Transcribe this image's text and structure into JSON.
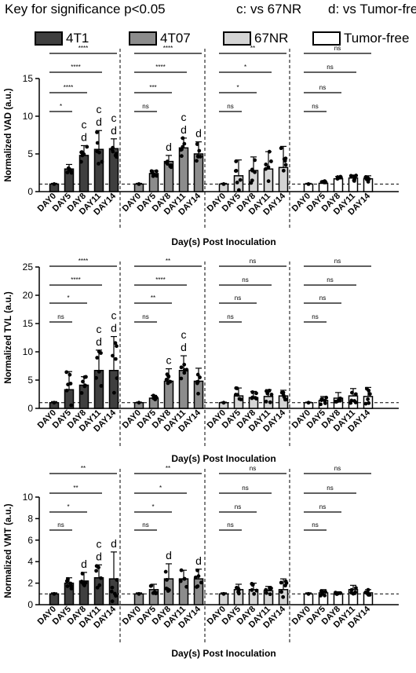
{
  "legend": {
    "titles": [
      "Key for significance p<0.05",
      "c: vs 67NR",
      "d: vs Tumor-free"
    ],
    "items": [
      {
        "label": "4T1",
        "color": "#3f3f3f"
      },
      {
        "label": "4T07",
        "color": "#8c8c8c"
      },
      {
        "label": "67NR",
        "color": "#d4d4d4"
      },
      {
        "label": "Tumor-free",
        "color": "#ffffff"
      }
    ]
  },
  "chart_data": [
    {
      "type": "bar",
      "ylabel": "Normalized VAD (a.u.)",
      "xlabel": "Day(s) Post Inoculation",
      "ylim": [
        0,
        15
      ],
      "yticks": [
        0,
        5,
        10,
        15
      ],
      "categories": [
        "DAY0",
        "DAY5",
        "DAY8",
        "DAY11",
        "DAY14"
      ],
      "reference_line": 1,
      "series": [
        {
          "name": "4T1",
          "values": [
            1.0,
            3.0,
            4.8,
            5.6,
            5.7
          ],
          "errors": [
            0.1,
            0.6,
            1.3,
            2.5,
            1.3
          ],
          "letters": [
            "",
            "",
            "c d",
            "c d",
            "c d"
          ],
          "brackets": [
            {
              "to": "DAY5",
              "label": "*"
            },
            {
              "to": "DAY8",
              "label": "****"
            },
            {
              "to": "DAY11",
              "label": "****"
            },
            {
              "to": "DAY14",
              "label": "****"
            }
          ]
        },
        {
          "name": "4T07",
          "values": [
            1.0,
            2.4,
            4.0,
            5.8,
            5.0
          ],
          "errors": [
            0.1,
            0.4,
            0.8,
            1.3,
            1.6
          ],
          "letters": [
            "",
            "",
            "d",
            "c d",
            "d"
          ],
          "brackets": [
            {
              "to": "DAY5",
              "label": "ns"
            },
            {
              "to": "DAY8",
              "label": "***"
            },
            {
              "to": "DAY11",
              "label": "****"
            },
            {
              "to": "DAY14",
              "label": "****"
            }
          ]
        },
        {
          "name": "67NR",
          "values": [
            1.0,
            2.1,
            2.8,
            3.0,
            3.2
          ],
          "errors": [
            0.1,
            2.1,
            1.8,
            2.3,
            2.8
          ],
          "letters": [
            "",
            "",
            "",
            "",
            ""
          ],
          "brackets": [
            {
              "to": "DAY5",
              "label": "ns"
            },
            {
              "to": "DAY8",
              "label": "*"
            },
            {
              "to": "DAY11",
              "label": "*"
            },
            {
              "to": "DAY14",
              "label": "**"
            }
          ]
        },
        {
          "name": "Tumor-free",
          "values": [
            1.0,
            1.1,
            1.7,
            1.8,
            1.7
          ],
          "errors": [
            0.1,
            0.3,
            0.3,
            0.4,
            0.4
          ],
          "letters": [
            "",
            "",
            "",
            "",
            ""
          ],
          "brackets": [
            {
              "to": "DAY5",
              "label": "ns"
            },
            {
              "to": "DAY8",
              "label": "ns"
            },
            {
              "to": "DAY11",
              "label": "ns"
            },
            {
              "to": "DAY14",
              "label": "ns"
            }
          ]
        }
      ]
    },
    {
      "type": "bar",
      "ylabel": "Normalized TVL (a.u.)",
      "xlabel": "Day(s) Post Inoculation",
      "ylim": [
        0,
        25
      ],
      "yticks": [
        0,
        5,
        10,
        15,
        20,
        25
      ],
      "categories": [
        "DAY0",
        "DAY5",
        "DAY8",
        "DAY11",
        "DAY14"
      ],
      "reference_line": 1,
      "series": [
        {
          "name": "4T1",
          "values": [
            1.0,
            3.3,
            4.1,
            6.7,
            6.7
          ],
          "errors": [
            0.2,
            3.2,
            1.5,
            3.6,
            6.0
          ],
          "letters": [
            "",
            "",
            "",
            "c d",
            "c d"
          ],
          "brackets": [
            {
              "to": "DAY5",
              "label": "ns"
            },
            {
              "to": "DAY8",
              "label": "*"
            },
            {
              "to": "DAY11",
              "label": "****"
            },
            {
              "to": "DAY14",
              "label": "****"
            }
          ]
        },
        {
          "name": "4T07",
          "values": [
            1.0,
            1.8,
            4.8,
            6.7,
            4.8
          ],
          "errors": [
            0.1,
            0.5,
            2.2,
            2.6,
            2.3
          ],
          "letters": [
            "",
            "",
            "c",
            "c d",
            ""
          ],
          "brackets": [
            {
              "to": "DAY5",
              "label": "ns"
            },
            {
              "to": "DAY8",
              "label": "**"
            },
            {
              "to": "DAY11",
              "label": "****"
            },
            {
              "to": "DAY14",
              "label": "**"
            }
          ]
        },
        {
          "name": "67NR",
          "values": [
            1.0,
            2.2,
            1.9,
            2.1,
            2.2
          ],
          "errors": [
            0.1,
            1.4,
            1.1,
            1.2,
            1.0
          ],
          "letters": [
            "",
            "",
            "",
            "",
            ""
          ],
          "brackets": [
            {
              "to": "DAY5",
              "label": "ns"
            },
            {
              "to": "DAY8",
              "label": "ns"
            },
            {
              "to": "DAY11",
              "label": "ns"
            },
            {
              "to": "DAY14",
              "label": "ns"
            }
          ]
        },
        {
          "name": "Tumor-free",
          "values": [
            1.0,
            1.4,
            1.8,
            2.2,
            2.1
          ],
          "errors": [
            0.1,
            0.7,
            1.0,
            1.3,
            1.6
          ],
          "letters": [
            "",
            "",
            "",
            "",
            ""
          ],
          "brackets": [
            {
              "to": "DAY5",
              "label": "ns"
            },
            {
              "to": "DAY8",
              "label": "ns"
            },
            {
              "to": "DAY11",
              "label": "ns"
            },
            {
              "to": "DAY14",
              "label": "ns"
            }
          ]
        }
      ]
    },
    {
      "type": "bar",
      "ylabel": "Normalized VMT (a.u.)",
      "xlabel": "Day(s) Post Inoculation",
      "ylim": [
        0,
        10
      ],
      "yticks": [
        0,
        2,
        4,
        6,
        8,
        10
      ],
      "categories": [
        "DAY0",
        "DAY5",
        "DAY8",
        "DAY11",
        "DAY14"
      ],
      "reference_line": 1,
      "series": [
        {
          "name": "4T1",
          "values": [
            1.0,
            2.0,
            2.2,
            2.5,
            2.4
          ],
          "errors": [
            0.1,
            0.5,
            0.8,
            1.2,
            2.5
          ],
          "letters": [
            "",
            "",
            "d",
            "c d",
            "d"
          ],
          "brackets": [
            {
              "to": "DAY5",
              "label": "ns"
            },
            {
              "to": "DAY8",
              "label": "*"
            },
            {
              "to": "DAY11",
              "label": "**"
            },
            {
              "to": "DAY14",
              "label": "**"
            }
          ]
        },
        {
          "name": "4T07",
          "values": [
            1.0,
            1.4,
            2.4,
            2.4,
            2.4
          ],
          "errors": [
            0.1,
            0.5,
            1.4,
            0.8,
            0.9
          ],
          "letters": [
            "",
            "",
            "d",
            "",
            "d"
          ],
          "brackets": [
            {
              "to": "DAY5",
              "label": "ns"
            },
            {
              "to": "DAY8",
              "label": "*"
            },
            {
              "to": "DAY11",
              "label": "*"
            },
            {
              "to": "DAY14",
              "label": "**"
            }
          ]
        },
        {
          "name": "67NR",
          "values": [
            1.0,
            1.4,
            1.4,
            1.3,
            1.4
          ],
          "errors": [
            0.1,
            0.5,
            0.6,
            0.4,
            1.0
          ],
          "letters": [
            "",
            "",
            "",
            "",
            ""
          ],
          "brackets": [
            {
              "to": "DAY5",
              "label": "ns"
            },
            {
              "to": "DAY8",
              "label": "ns"
            },
            {
              "to": "DAY11",
              "label": "ns"
            },
            {
              "to": "DAY14",
              "label": "ns"
            }
          ]
        },
        {
          "name": "Tumor-free",
          "values": [
            1.0,
            1.1,
            1.0,
            1.4,
            1.1
          ],
          "errors": [
            0.1,
            0.3,
            0.2,
            0.4,
            0.3
          ],
          "letters": [
            "",
            "",
            "",
            "",
            ""
          ],
          "brackets": [
            {
              "to": "DAY5",
              "label": "ns"
            },
            {
              "to": "DAY8",
              "label": "ns"
            },
            {
              "to": "DAY11",
              "label": "ns"
            },
            {
              "to": "DAY14",
              "label": "ns"
            }
          ]
        }
      ]
    }
  ]
}
